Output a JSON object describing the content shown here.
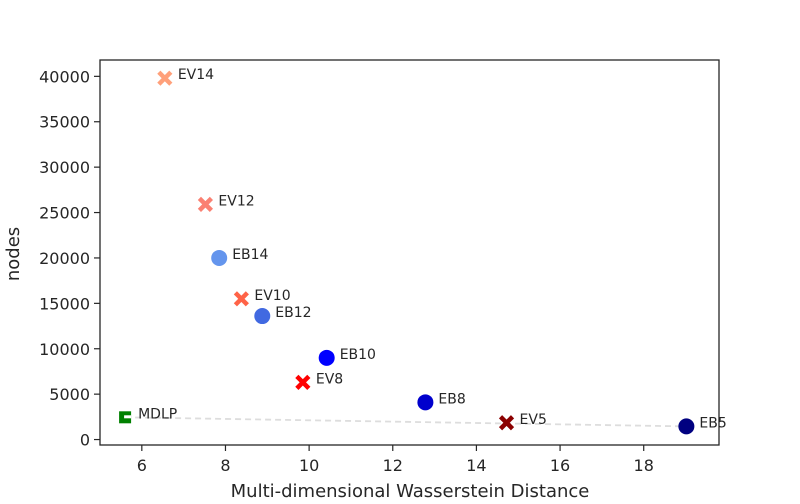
{
  "chart_data": {
    "type": "scatter",
    "title": "",
    "xlabel": "Multi-dimensional Wasserstein Distance",
    "ylabel": "nodes",
    "xlim": [
      5.0,
      19.8
    ],
    "ylim": [
      -600,
      41800
    ],
    "xticks": [
      6,
      8,
      10,
      12,
      14,
      16,
      18
    ],
    "yticks": [
      0,
      5000,
      10000,
      15000,
      20000,
      25000,
      30000,
      35000,
      40000
    ],
    "grid": false,
    "legend": "none",
    "points": [
      {
        "label": "EV14",
        "x": 6.55,
        "y": 39800,
        "marker": "x",
        "color": "#FFA07A"
      },
      {
        "label": "EV12",
        "x": 7.52,
        "y": 25900,
        "marker": "x",
        "color": "#FA8072"
      },
      {
        "label": "EB14",
        "x": 7.85,
        "y": 20000,
        "marker": "o",
        "color": "#6495ED"
      },
      {
        "label": "EV10",
        "x": 8.38,
        "y": 15500,
        "marker": "x",
        "color": "#FF6347"
      },
      {
        "label": "EB12",
        "x": 8.88,
        "y": 13600,
        "marker": "o",
        "color": "#4169E1"
      },
      {
        "label": "EB10",
        "x": 10.42,
        "y": 9000,
        "marker": "o",
        "color": "#0000FF"
      },
      {
        "label": "EV8",
        "x": 9.85,
        "y": 6300,
        "marker": "x",
        "color": "#FF0000"
      },
      {
        "label": "EB8",
        "x": 12.78,
        "y": 4100,
        "marker": "o",
        "color": "#0000CD"
      },
      {
        "label": "EV5",
        "x": 14.72,
        "y": 1850,
        "marker": "x",
        "color": "#8B0000"
      },
      {
        "label": "EB5",
        "x": 19.02,
        "y": 1450,
        "marker": "o",
        "color": "#000080"
      },
      {
        "label": "MDLP",
        "x": 5.6,
        "y": 2450,
        "marker": "square",
        "color": "#008000"
      }
    ],
    "trend_line": {
      "x": [
        5.6,
        19.02
      ],
      "y": [
        2450,
        1450
      ],
      "style": "dashed",
      "color": "#DDDDDD"
    }
  }
}
